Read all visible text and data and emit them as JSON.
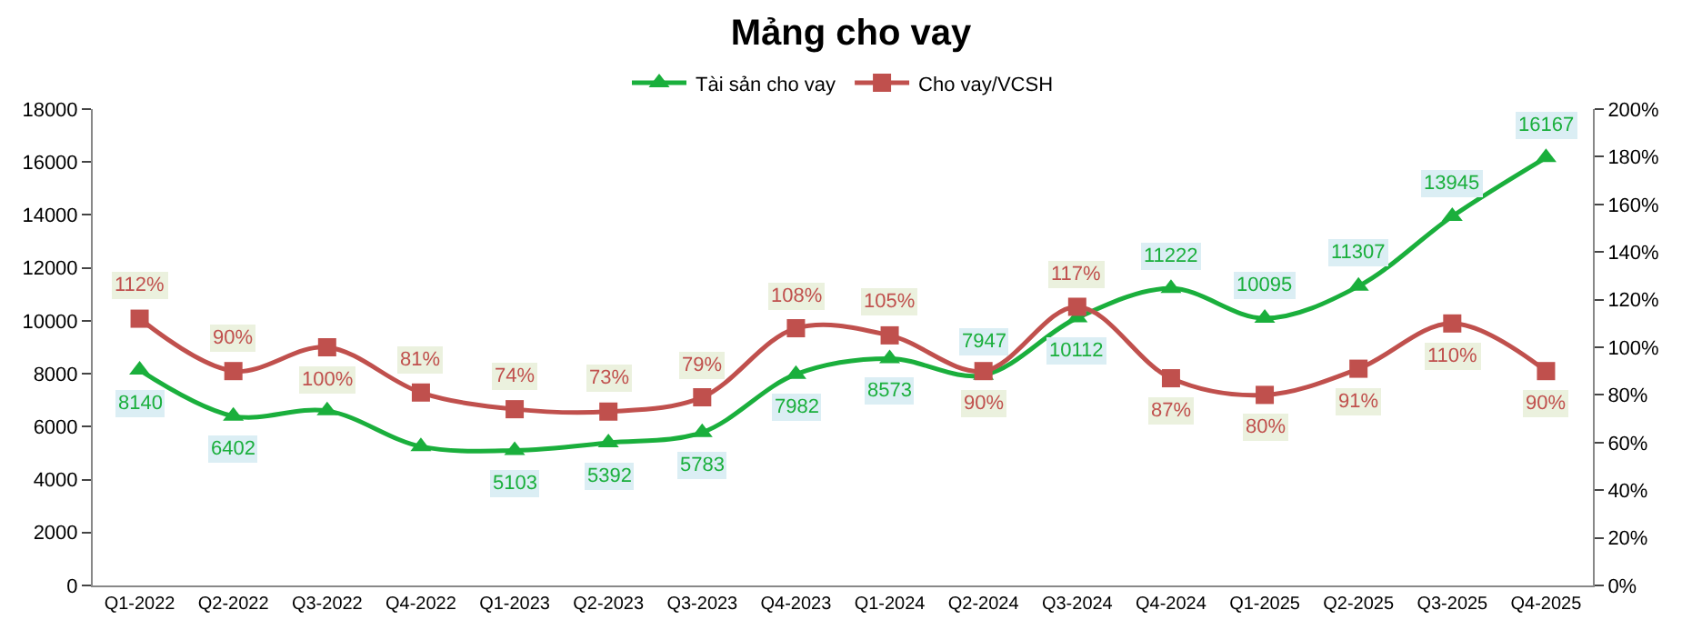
{
  "chart_data": {
    "type": "line",
    "title": "Mảng cho vay",
    "categories": [
      "Q1-2022",
      "Q2-2022",
      "Q3-2022",
      "Q4-2022",
      "Q1-2023",
      "Q2-2023",
      "Q3-2023",
      "Q4-2023",
      "Q1-2024",
      "Q2-2024",
      "Q3-2024",
      "Q4-2024",
      "Q1-2025",
      "Q2-2025",
      "Q3-2025",
      "Q4-2025"
    ],
    "series": [
      {
        "name": "Tài sản cho vay",
        "color": "#1aaf3c",
        "marker": "triangle",
        "values": [
          8140,
          6402,
          6600,
          5250,
          5103,
          5392,
          5783,
          7982,
          8573,
          7947,
          10112,
          11222,
          10095,
          11307,
          13945,
          16167
        ],
        "value_labels": [
          "8140",
          "6402",
          null,
          null,
          "5103",
          "5392",
          "5783",
          "7982",
          "8573",
          "7947",
          "10112",
          "11222",
          "10095",
          "11307",
          "13945",
          "16167"
        ]
      },
      {
        "name": "Cho vay/VCSH",
        "color": "#c0504d",
        "marker": "square",
        "axis": "y2",
        "values": [
          112,
          90,
          100,
          81,
          74,
          73,
          79,
          108,
          105,
          90,
          117,
          87,
          80,
          91,
          110,
          90
        ],
        "value_labels": [
          "112%",
          "90%",
          "100%",
          "81%",
          "74%",
          "73%",
          "79%",
          "108%",
          "105%",
          "90%",
          "117%",
          "87%",
          "80%",
          "91%",
          "110%",
          "90%"
        ]
      }
    ],
    "ylim": [
      0,
      18000
    ],
    "yticks": [
      0,
      2000,
      4000,
      6000,
      8000,
      10000,
      12000,
      14000,
      16000,
      18000
    ],
    "y2lim": [
      0,
      200
    ],
    "y2ticks": [
      {
        "value": 0,
        "label": "0%"
      },
      {
        "value": 20,
        "label": "20%"
      },
      {
        "value": 40,
        "label": "40%"
      },
      {
        "value": 60,
        "label": "60%"
      },
      {
        "value": 80,
        "label": "80%"
      },
      {
        "value": 100,
        "label": "100%"
      },
      {
        "value": 120,
        "label": "120%"
      },
      {
        "value": 140,
        "label": "140%"
      },
      {
        "value": 160,
        "label": "160%"
      },
      {
        "value": 180,
        "label": "180%"
      },
      {
        "value": 200,
        "label": "200%"
      }
    ],
    "legend": "top"
  }
}
